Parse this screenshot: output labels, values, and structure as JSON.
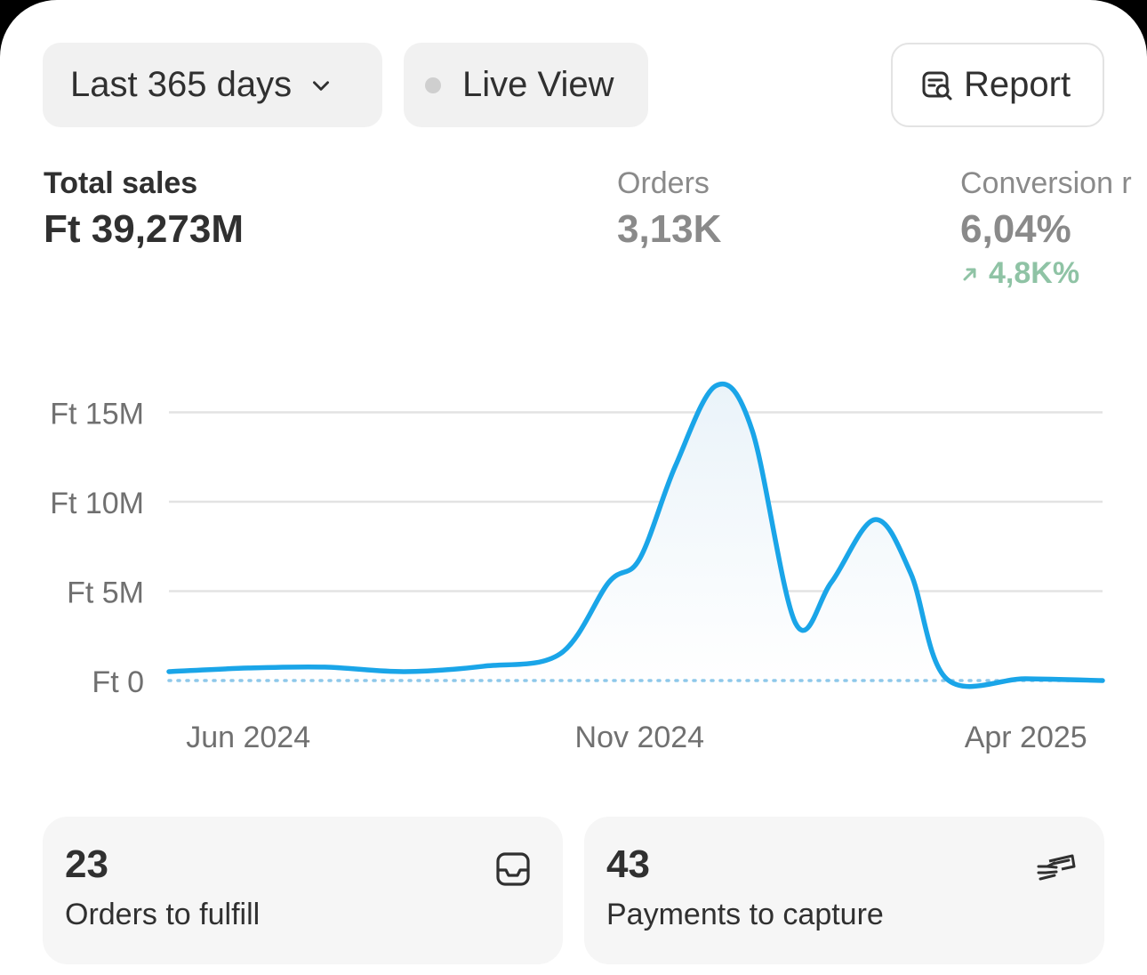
{
  "toolbar": {
    "date_range": "Last 365 days",
    "live_view": "Live View",
    "report": "Report"
  },
  "metrics": {
    "total_sales": {
      "label": "Total sales",
      "value": "Ft 39,273M"
    },
    "orders": {
      "label": "Orders",
      "value": "3,13K"
    },
    "conversion": {
      "label": "Conversion r",
      "value": "6,04%",
      "change": "4,8K%"
    }
  },
  "chart_data": {
    "type": "area",
    "title": "",
    "xlabel": "",
    "ylabel": "",
    "x_ticks": [
      "Jun 2024",
      "Nov 2024",
      "Apr 2025"
    ],
    "y_ticks": [
      "Ft 0",
      "Ft 5M",
      "Ft 10M",
      "Ft 15M"
    ],
    "ylim": [
      0,
      17
    ],
    "series": [
      {
        "color": "#1aa5e8",
        "x": [
          "2024-05-01",
          "2024-06-01",
          "2024-07-01",
          "2024-08-01",
          "2024-09-01",
          "2024-10-01",
          "2024-10-20",
          "2024-11-01",
          "2024-11-15",
          "2024-12-01",
          "2024-12-15",
          "2025-01-01",
          "2025-01-15",
          "2025-02-01",
          "2025-02-15",
          "2025-03-01",
          "2025-04-01",
          "2025-05-01"
        ],
        "values": [
          0.5,
          0.7,
          0.75,
          0.5,
          0.8,
          1.5,
          5.5,
          6.8,
          12,
          16.5,
          14,
          3.2,
          5.5,
          9,
          6,
          0.1,
          0.1,
          0.0
        ]
      },
      {
        "color": "#8ec8ea",
        "dashed": true,
        "x": [
          "2024-05-01",
          "2025-05-01"
        ],
        "values": [
          0,
          0
        ]
      }
    ],
    "grid": true
  },
  "stats": {
    "fulfill": {
      "count": "23",
      "label": "Orders to fulfill",
      "icon": "inbox-icon"
    },
    "capture": {
      "count": "43",
      "label": "Payments to capture",
      "icon": "hand-cash-icon"
    }
  }
}
